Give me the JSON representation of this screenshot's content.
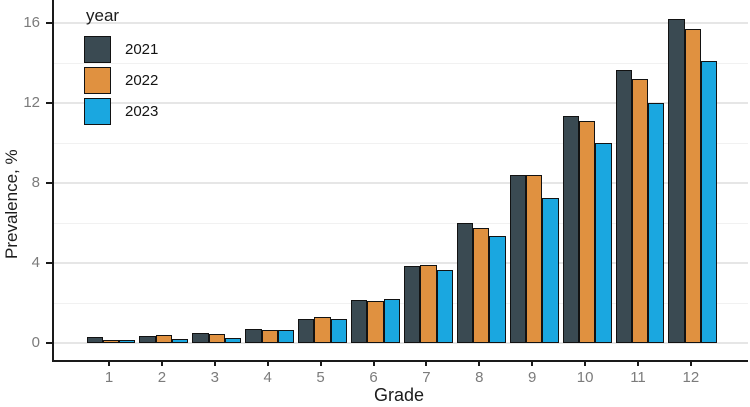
{
  "chart_data": {
    "type": "bar",
    "title": "",
    "xlabel": "Grade",
    "ylabel": "Prevalence, %",
    "legend_title": "year",
    "legend_position": "top-left-inside",
    "grid": true,
    "categories": [
      "1",
      "2",
      "3",
      "4",
      "5",
      "6",
      "7",
      "8",
      "9",
      "10",
      "11",
      "12"
    ],
    "series": [
      {
        "name": "2021",
        "color": "#3a4a52",
        "values": [
          0.3,
          0.35,
          0.5,
          0.7,
          1.2,
          2.15,
          3.85,
          6.0,
          8.4,
          11.35,
          13.65,
          16.2
        ]
      },
      {
        "name": "2022",
        "color": "#e09140",
        "values": [
          0.15,
          0.4,
          0.45,
          0.65,
          1.3,
          2.1,
          3.9,
          5.75,
          8.4,
          11.1,
          13.2,
          15.7
        ]
      },
      {
        "name": "2023",
        "color": "#1aa7e0",
        "values": [
          0.15,
          0.2,
          0.25,
          0.65,
          1.2,
          2.2,
          3.65,
          5.35,
          7.25,
          10.0,
          12.0,
          14.1
        ]
      }
    ],
    "ylim": [
      0,
      16.5
    ],
    "y_major_ticks": [
      0,
      4,
      8,
      12,
      16
    ],
    "y_minor_gridlines": [
      2,
      6,
      10,
      14
    ],
    "colors": {
      "bar_outline": "#121212",
      "gridline_major": "#e6e6e6",
      "gridline_minor": "#f1f1f1",
      "axis_line": "#1a1a1a",
      "tick_label": "#7b7b7b",
      "axis_title": "#1c1c1c",
      "legend_text": "#141414",
      "background": "#ffffff"
    }
  }
}
